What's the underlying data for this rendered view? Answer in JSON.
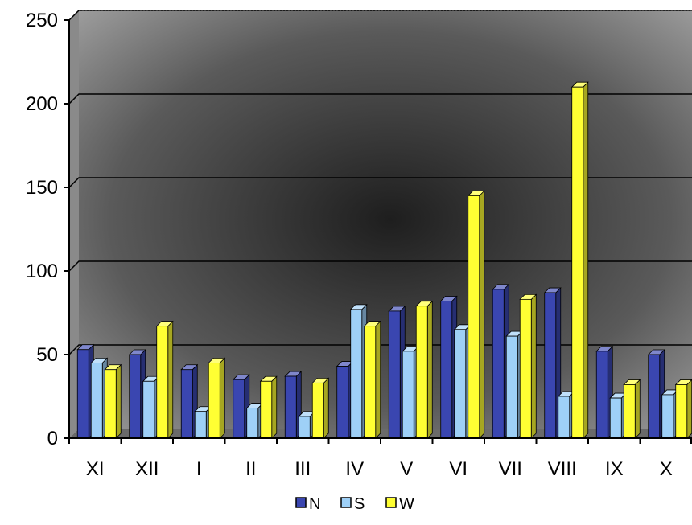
{
  "chart_data": {
    "type": "bar",
    "style": "3d-clustered-column",
    "title": "",
    "xlabel": "",
    "ylabel": "",
    "categories": [
      "XI",
      "XII",
      "I",
      "II",
      "III",
      "IV",
      "V",
      "VI",
      "VII",
      "VIII",
      "IX",
      "X"
    ],
    "series": [
      {
        "name": "N",
        "color": "#3a46b0",
        "values": [
          53,
          50,
          41,
          35,
          37,
          43,
          76,
          82,
          89,
          87,
          52,
          50
        ]
      },
      {
        "name": "S",
        "color": "#9ed0f7",
        "values": [
          45,
          34,
          16,
          18,
          13,
          77,
          52,
          65,
          61,
          25,
          24,
          26
        ]
      },
      {
        "name": "W",
        "color": "#ffff33",
        "values": [
          41,
          67,
          45,
          34,
          33,
          67,
          79,
          145,
          83,
          210,
          32,
          32
        ]
      }
    ],
    "ylim": [
      0,
      250
    ],
    "yticks": [
      0,
      50,
      100,
      150,
      200,
      250
    ],
    "grid": true,
    "legend_position": "bottom"
  }
}
